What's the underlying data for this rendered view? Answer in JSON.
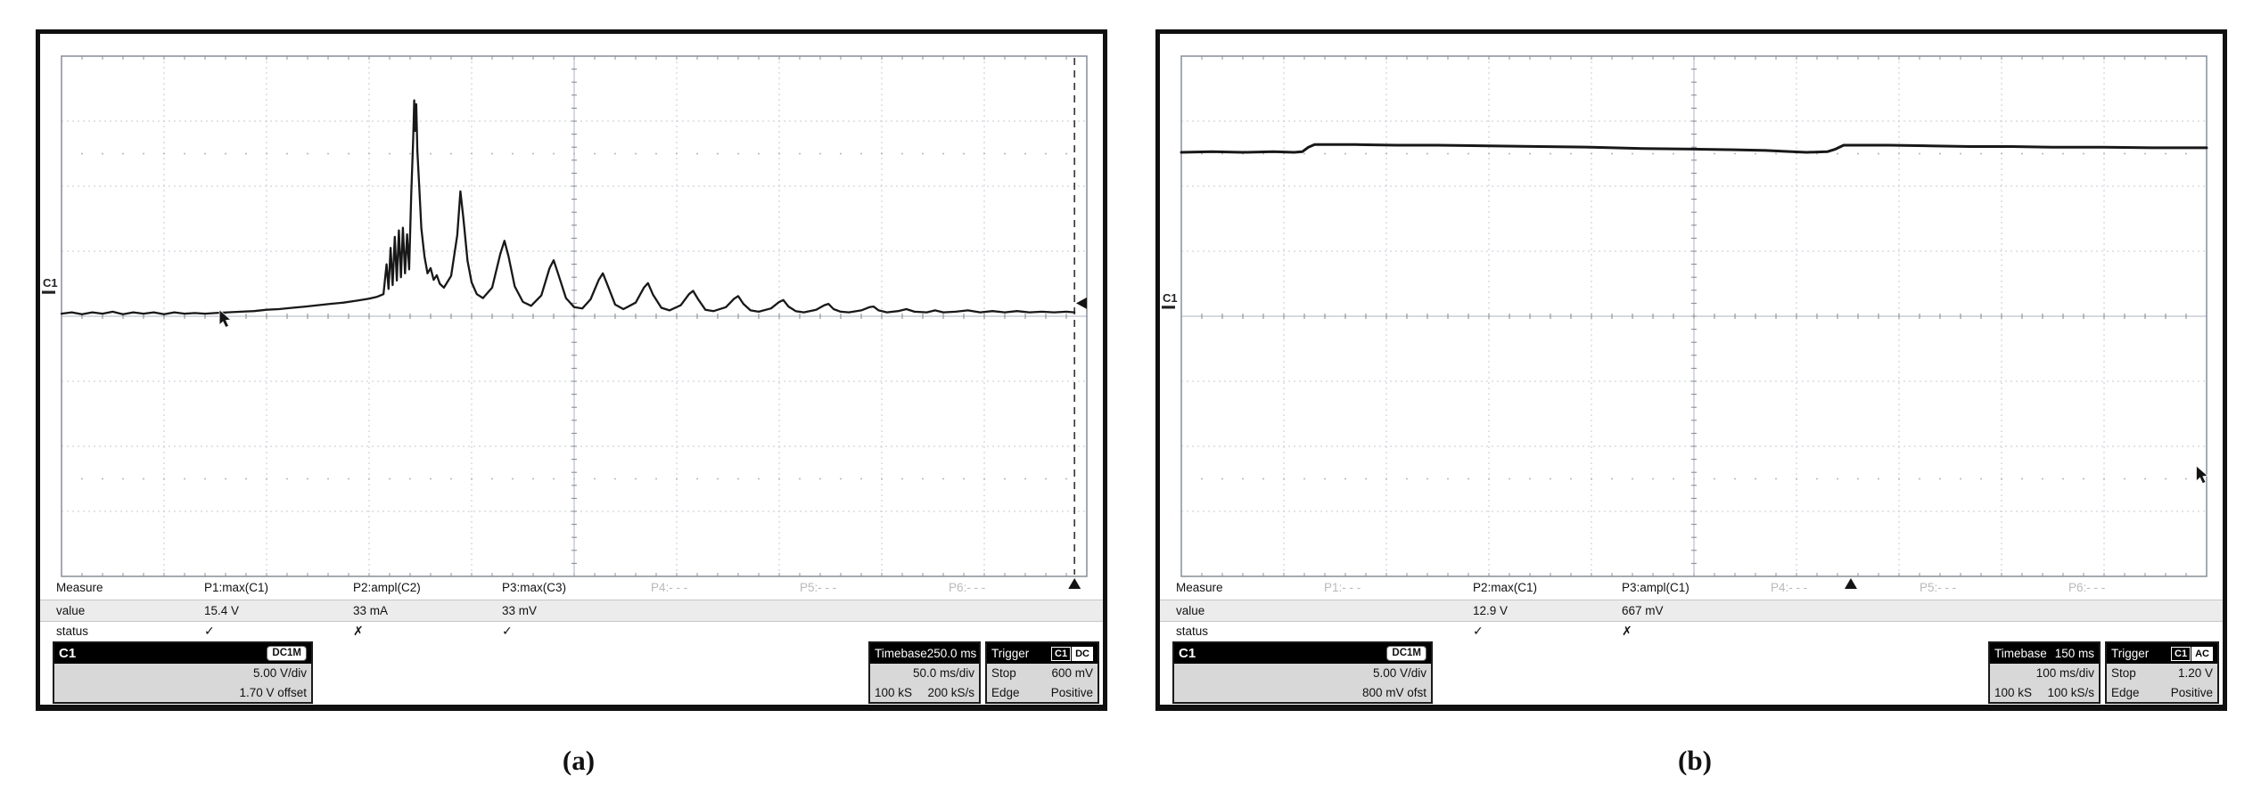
{
  "figure": {
    "panels": [
      {
        "caption": "(a)",
        "channel_indicator": "C1",
        "row_labels": [
          "Measure",
          "value",
          "status"
        ],
        "columns": [
          {
            "name": "P1:max(C1)",
            "value": "15.4 V",
            "status": "✓",
            "active": true
          },
          {
            "name": "P2:ampl(C2)",
            "value": "33 mA",
            "status": "✗",
            "active": true
          },
          {
            "name": "P3:max(C3)",
            "value": "33 mV",
            "status": "✓",
            "active": true
          },
          {
            "name": "P4:- - -",
            "value": "",
            "status": "",
            "active": false
          },
          {
            "name": "P5:- - -",
            "value": "",
            "status": "",
            "active": false
          },
          {
            "name": "P6:- - -",
            "value": "",
            "status": "",
            "active": false
          }
        ],
        "channel_box": {
          "label": "C1",
          "coupling": "DC1M",
          "vdiv": "5.00 V/div",
          "offset": "1.70 V offset"
        },
        "timebase_box": {
          "label": "Timebase",
          "delay": "250.0 ms",
          "tdiv": "50.0 ms/div",
          "samples": "100 kS",
          "rate": "200 kS/s"
        },
        "trigger_box": {
          "label": "Trigger",
          "source": "C1",
          "coupling": "DC",
          "mode": "Stop",
          "level": "600 mV",
          "kind": "Edge",
          "slope": "Positive"
        }
      },
      {
        "caption": "(b)",
        "channel_indicator": "C1",
        "row_labels": [
          "Measure",
          "value",
          "status"
        ],
        "columns": [
          {
            "name": "P1:- - -",
            "value": "",
            "status": "",
            "active": false
          },
          {
            "name": "P2:max(C1)",
            "value": "12.9 V",
            "status": "✓",
            "active": true
          },
          {
            "name": "P3:ampl(C1)",
            "value": "667 mV",
            "status": "✗",
            "active": true
          },
          {
            "name": "P4:- - -",
            "value": "",
            "status": "",
            "active": false
          },
          {
            "name": "P5:- - -",
            "value": "",
            "status": "",
            "active": false
          },
          {
            "name": "P6:- - -",
            "value": "",
            "status": "",
            "active": false
          }
        ],
        "channel_box": {
          "label": "C1",
          "coupling": "DC1M",
          "vdiv": "5.00 V/div",
          "offset": "800 mV ofst"
        },
        "timebase_box": {
          "label": "Timebase",
          "delay": "150 ms",
          "tdiv": "100 ms/div",
          "samples": "100 kS",
          "rate": "100 kS/s"
        },
        "trigger_box": {
          "label": "Trigger",
          "source": "C1",
          "coupling": "AC",
          "mode": "Stop",
          "level": "1.20 V",
          "kind": "Edge",
          "slope": "Positive"
        }
      }
    ]
  },
  "chart_data": [
    {
      "type": "line",
      "title": "Oscilloscope capture (a): flat baseline ramping into a burst of spikes followed by a decaying oscillation",
      "xlabel": "time, 50.0 ms/div (10 divisions)",
      "ylabel": "C1 voltage, 5.00 V/div (8 divisions, y in divisions above center)",
      "xlim": [
        0,
        10
      ],
      "ylim": [
        -4,
        4
      ],
      "grid": "10x8 divisions, dotted minor lines, center axes with ticks",
      "max_value_V": 15.4,
      "stroke_width": 2.3,
      "trigger_line_xdiv": 9.88,
      "trigger_marker_xdiv": 9.88,
      "trigger_level_ydiv": 0.2,
      "channel_marker_ydiv": 0.37,
      "cursor": [
        1.54,
        0.1
      ],
      "points": [
        [
          0,
          0.04
        ],
        [
          0.1,
          0.06
        ],
        [
          0.2,
          0.03
        ],
        [
          0.3,
          0.06
        ],
        [
          0.4,
          0.04
        ],
        [
          0.5,
          0.07
        ],
        [
          0.6,
          0.03
        ],
        [
          0.7,
          0.06
        ],
        [
          0.8,
          0.04
        ],
        [
          0.9,
          0.06
        ],
        [
          1,
          0.03
        ],
        [
          1.1,
          0.06
        ],
        [
          1.2,
          0.04
        ],
        [
          1.3,
          0.05
        ],
        [
          1.4,
          0.04
        ],
        [
          1.5,
          0.05
        ],
        [
          1.62,
          0.06
        ],
        [
          1.75,
          0.07
        ],
        [
          1.88,
          0.08
        ],
        [
          2,
          0.1
        ],
        [
          2.12,
          0.11
        ],
        [
          2.25,
          0.13
        ],
        [
          2.38,
          0.15
        ],
        [
          2.5,
          0.17
        ],
        [
          2.62,
          0.19
        ],
        [
          2.75,
          0.21
        ],
        [
          2.88,
          0.24
        ],
        [
          3,
          0.27
        ],
        [
          3.08,
          0.3
        ],
        [
          3.14,
          0.34
        ],
        [
          3.17,
          0.8
        ],
        [
          3.19,
          0.42
        ],
        [
          3.21,
          1.05
        ],
        [
          3.23,
          0.48
        ],
        [
          3.25,
          1.22
        ],
        [
          3.27,
          0.55
        ],
        [
          3.29,
          1.32
        ],
        [
          3.31,
          0.6
        ],
        [
          3.33,
          1.36
        ],
        [
          3.35,
          0.66
        ],
        [
          3.37,
          1.26
        ],
        [
          3.39,
          0.72
        ],
        [
          3.41,
          1.85
        ],
        [
          3.43,
          2.75
        ],
        [
          3.44,
          3.32
        ],
        [
          3.45,
          2.85
        ],
        [
          3.46,
          3.26
        ],
        [
          3.47,
          2.55
        ],
        [
          3.49,
          1.95
        ],
        [
          3.51,
          1.35
        ],
        [
          3.54,
          0.92
        ],
        [
          3.57,
          0.66
        ],
        [
          3.6,
          0.74
        ],
        [
          3.63,
          0.56
        ],
        [
          3.66,
          0.63
        ],
        [
          3.69,
          0.5
        ],
        [
          3.73,
          0.44
        ],
        [
          3.8,
          0.62
        ],
        [
          3.86,
          1.25
        ],
        [
          3.89,
          1.92
        ],
        [
          3.92,
          1.5
        ],
        [
          3.96,
          0.85
        ],
        [
          4,
          0.52
        ],
        [
          4.05,
          0.34
        ],
        [
          4.11,
          0.28
        ],
        [
          4.2,
          0.44
        ],
        [
          4.28,
          0.96
        ],
        [
          4.32,
          1.16
        ],
        [
          4.36,
          0.92
        ],
        [
          4.42,
          0.46
        ],
        [
          4.5,
          0.22
        ],
        [
          4.58,
          0.16
        ],
        [
          4.68,
          0.32
        ],
        [
          4.76,
          0.74
        ],
        [
          4.8,
          0.86
        ],
        [
          4.85,
          0.62
        ],
        [
          4.92,
          0.28
        ],
        [
          5,
          0.14
        ],
        [
          5.08,
          0.12
        ],
        [
          5.16,
          0.26
        ],
        [
          5.24,
          0.56
        ],
        [
          5.28,
          0.66
        ],
        [
          5.33,
          0.46
        ],
        [
          5.4,
          0.18
        ],
        [
          5.48,
          0.11
        ],
        [
          5.6,
          0.21
        ],
        [
          5.68,
          0.44
        ],
        [
          5.72,
          0.51
        ],
        [
          5.77,
          0.33
        ],
        [
          5.85,
          0.13
        ],
        [
          5.93,
          0.09
        ],
        [
          6.04,
          0.17
        ],
        [
          6.12,
          0.34
        ],
        [
          6.16,
          0.39
        ],
        [
          6.21,
          0.26
        ],
        [
          6.28,
          0.1
        ],
        [
          6.36,
          0.08
        ],
        [
          6.48,
          0.14
        ],
        [
          6.56,
          0.27
        ],
        [
          6.6,
          0.31
        ],
        [
          6.65,
          0.19
        ],
        [
          6.72,
          0.09
        ],
        [
          6.8,
          0.07
        ],
        [
          6.92,
          0.12
        ],
        [
          7,
          0.22
        ],
        [
          7.04,
          0.25
        ],
        [
          7.09,
          0.15
        ],
        [
          7.16,
          0.08
        ],
        [
          7.24,
          0.06
        ],
        [
          7.36,
          0.1
        ],
        [
          7.44,
          0.17
        ],
        [
          7.48,
          0.19
        ],
        [
          7.53,
          0.11
        ],
        [
          7.6,
          0.07
        ],
        [
          7.68,
          0.06
        ],
        [
          7.8,
          0.09
        ],
        [
          7.88,
          0.14
        ],
        [
          7.92,
          0.15
        ],
        [
          7.97,
          0.09
        ],
        [
          8.05,
          0.06
        ],
        [
          8.16,
          0.08
        ],
        [
          8.24,
          0.11
        ],
        [
          8.32,
          0.07
        ],
        [
          8.44,
          0.06
        ],
        [
          8.52,
          0.09
        ],
        [
          8.6,
          0.06
        ],
        [
          8.72,
          0.07
        ],
        [
          8.84,
          0.09
        ],
        [
          8.96,
          0.06
        ],
        [
          9.08,
          0.08
        ],
        [
          9.2,
          0.06
        ],
        [
          9.32,
          0.08
        ],
        [
          9.44,
          0.06
        ],
        [
          9.56,
          0.07
        ],
        [
          9.68,
          0.06
        ],
        [
          9.8,
          0.07
        ],
        [
          9.88,
          0.06
        ]
      ]
    },
    {
      "type": "line",
      "title": "Oscilloscope capture (b): nearly flat DC level about 2.6 divisions above center with two small steps",
      "xlabel": "time, 100 ms/div (10 divisions)",
      "ylabel": "C1 voltage, 5.00 V/div (8 divisions, y in divisions above center)",
      "xlim": [
        0,
        10
      ],
      "ylim": [
        -4,
        4
      ],
      "grid": "10x8 divisions, dotted minor lines, center axes with ticks",
      "max_value_V": 12.9,
      "stroke_width": 3,
      "trigger_marker_xdiv": 6.53,
      "channel_marker_ydiv": 0.14,
      "cursor": [
        9.9,
        -2.3
      ],
      "points": [
        [
          0,
          2.52
        ],
        [
          0.3,
          2.53
        ],
        [
          0.6,
          2.52
        ],
        [
          0.9,
          2.53
        ],
        [
          1.1,
          2.52
        ],
        [
          1.18,
          2.53
        ],
        [
          1.24,
          2.6
        ],
        [
          1.3,
          2.64
        ],
        [
          1.7,
          2.64
        ],
        [
          2.1,
          2.63
        ],
        [
          2.5,
          2.63
        ],
        [
          3,
          2.62
        ],
        [
          3.5,
          2.61
        ],
        [
          4,
          2.6
        ],
        [
          4.5,
          2.58
        ],
        [
          5,
          2.57
        ],
        [
          5.4,
          2.56
        ],
        [
          5.7,
          2.55
        ],
        [
          5.95,
          2.53
        ],
        [
          6.1,
          2.52
        ],
        [
          6.3,
          2.53
        ],
        [
          6.38,
          2.57
        ],
        [
          6.46,
          2.63
        ],
        [
          6.9,
          2.63
        ],
        [
          7.3,
          2.62
        ],
        [
          7.7,
          2.61
        ],
        [
          8.1,
          2.61
        ],
        [
          8.5,
          2.6
        ],
        [
          9,
          2.6
        ],
        [
          9.5,
          2.59
        ],
        [
          10,
          2.59
        ]
      ]
    }
  ]
}
